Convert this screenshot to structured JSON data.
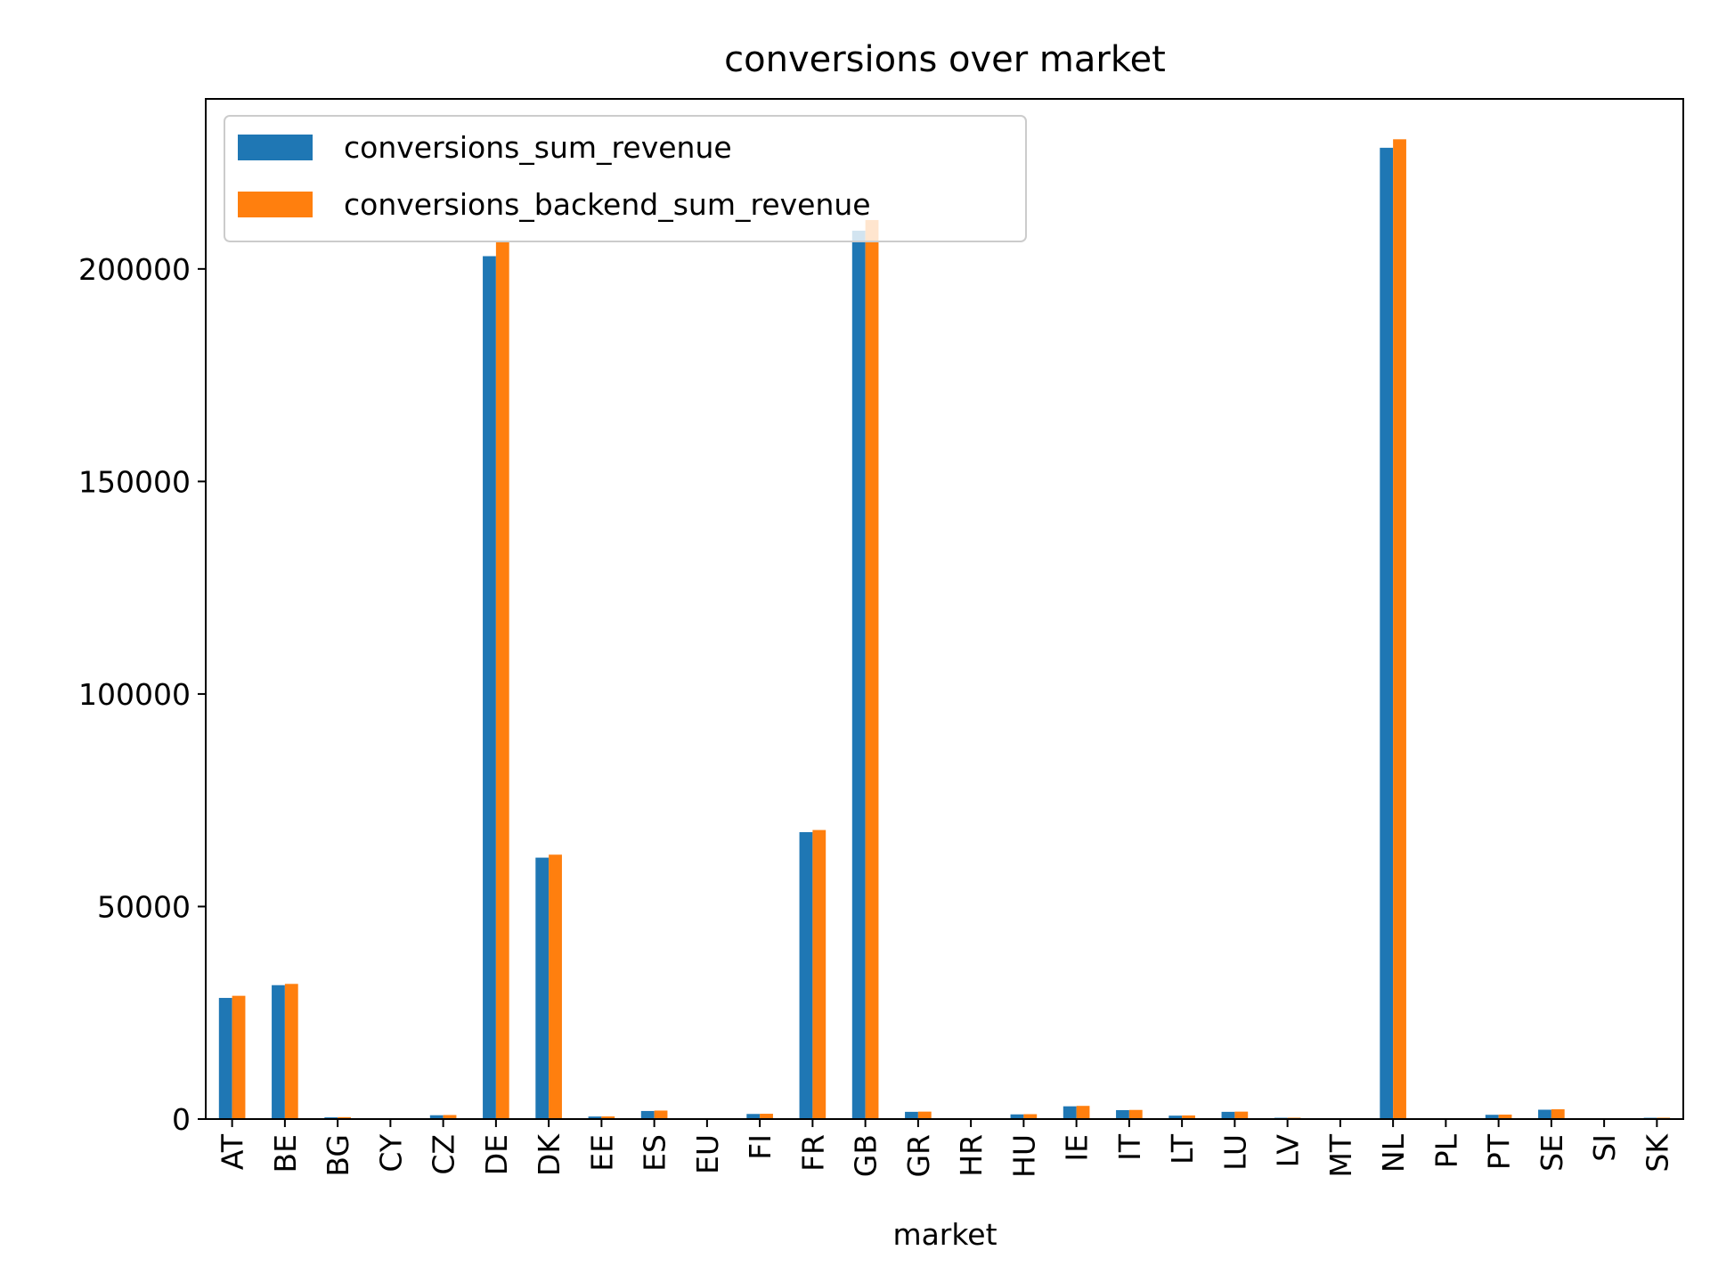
{
  "chart_data": {
    "type": "bar",
    "title": "conversions over market",
    "xlabel": "market",
    "ylabel": "",
    "ylim": [
      0,
      240000
    ],
    "yticks": [
      0,
      50000,
      100000,
      150000,
      200000
    ],
    "ytick_labels": [
      "0",
      "50000",
      "100000",
      "150000",
      "200000"
    ],
    "grid": false,
    "legend_position": "top-left",
    "categories": [
      "AT",
      "BE",
      "BG",
      "CY",
      "CZ",
      "DE",
      "DK",
      "EE",
      "ES",
      "EU",
      "FI",
      "FR",
      "GB",
      "GR",
      "HR",
      "HU",
      "IE",
      "IT",
      "LT",
      "LU",
      "LV",
      "MT",
      "NL",
      "PL",
      "PT",
      "SE",
      "SI",
      "SK"
    ],
    "series": [
      {
        "name": "conversions_sum_revenue",
        "color": "#1f77b4",
        "values": [
          28500,
          31500,
          400,
          0,
          900,
          203000,
          61500,
          600,
          1900,
          0,
          1200,
          67500,
          209000,
          1700,
          0,
          1100,
          3000,
          2100,
          800,
          1700,
          300,
          0,
          228500,
          0,
          1000,
          2200,
          0,
          300
        ]
      },
      {
        "name": "conversions_backend_sum_revenue",
        "color": "#ff7f0e",
        "values": [
          29000,
          31800,
          450,
          0,
          950,
          206500,
          62200,
          620,
          2000,
          0,
          1250,
          68000,
          211500,
          1750,
          0,
          1150,
          3100,
          2150,
          850,
          1750,
          320,
          0,
          230500,
          0,
          1050,
          2300,
          0,
          320
        ]
      }
    ]
  }
}
